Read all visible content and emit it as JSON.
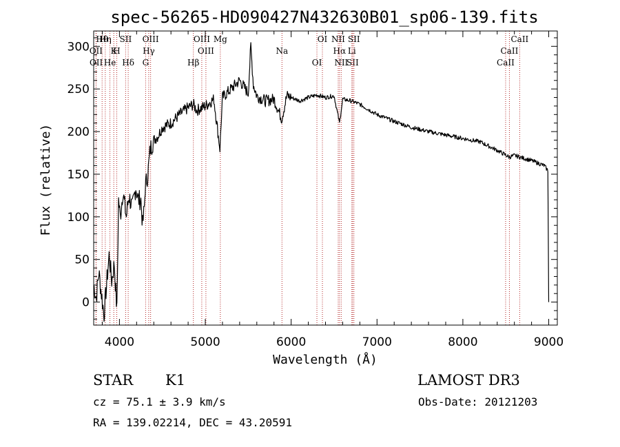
{
  "chart_data": {
    "type": "line",
    "title": "spec-56265-HD090427N432630B01_sp06-139.fits",
    "xlabel": "Wavelength (Å)",
    "ylabel": "Flux (relative)",
    "xlim": [
      3700,
      9100
    ],
    "ylim": [
      -27,
      318
    ],
    "xticks": [
      4000,
      5000,
      6000,
      7000,
      8000,
      9000
    ],
    "yticks": [
      0,
      50,
      100,
      150,
      200,
      250,
      300
    ],
    "series": [
      {
        "x": [
          3700,
          3730,
          3760,
          3790,
          3820,
          3850,
          3880,
          3910,
          3940,
          3970,
          3990,
          4010,
          4040,
          4080,
          4110,
          4150,
          4190,
          4220,
          4250,
          4270,
          4290,
          4300,
          4330,
          4360,
          4400,
          4450,
          4500,
          4600,
          4700,
          4800,
          4860,
          4900,
          5000,
          5100,
          5170,
          5200,
          5300,
          5400,
          5500,
          5530,
          5560,
          5600,
          5700,
          5800,
          5890,
          5950,
          6000,
          6100,
          6200,
          6300,
          6400,
          6500,
          6563,
          6600,
          6700,
          6800,
          7000,
          7200,
          7400,
          7600,
          7800,
          8000,
          8200,
          8400,
          8542,
          8600,
          8700,
          8800,
          8950,
          8990,
          8995,
          9000
        ],
        "y": [
          20,
          5,
          35,
          10,
          -15,
          20,
          55,
          25,
          45,
          -10,
          120,
          100,
          130,
          100,
          125,
          110,
          135,
          120,
          120,
          90,
          110,
          135,
          150,
          180,
          190,
          195,
          205,
          210,
          220,
          228,
          232,
          225,
          230,
          238,
          180,
          240,
          250,
          260,
          245,
          300,
          255,
          242,
          236,
          238,
          215,
          242,
          240,
          236,
          240,
          243,
          240,
          242,
          210,
          238,
          236,
          232,
          220,
          212,
          205,
          200,
          196,
          192,
          188,
          178,
          170,
          172,
          169,
          166,
          160,
          154,
          80,
          0
        ]
      }
    ],
    "spectral_lines": [
      {
        "label": "Hθ",
        "x": 3798
      },
      {
        "label": "OII",
        "x": 3727
      },
      {
        "label": "OII",
        "x": 3729
      },
      {
        "label": "Hη",
        "x": 3835
      },
      {
        "label": "K",
        "x": 3934
      },
      {
        "label": "He",
        "x": 3889
      },
      {
        "label": "SII",
        "x": 4072
      },
      {
        "label": "H",
        "x": 3969
      },
      {
        "label": "Hδ",
        "x": 4102
      },
      {
        "label": "OIII",
        "x": 4363
      },
      {
        "label": "Hγ",
        "x": 4341
      },
      {
        "label": "G",
        "x": 4305
      },
      {
        "label": "OIII",
        "x": 4959
      },
      {
        "label": "OIII",
        "x": 5007
      },
      {
        "label": "Hβ",
        "x": 4861
      },
      {
        "label": "Mg",
        "x": 5175
      },
      {
        "label": "Na",
        "x": 5893
      },
      {
        "label": "OI",
        "x": 6300
      },
      {
        "label": "OI",
        "x": 6364
      },
      {
        "label": "Hα",
        "x": 6563
      },
      {
        "label": "SII",
        "x": 6716
      },
      {
        "label": "NII",
        "x": 6548
      },
      {
        "label": "Li",
        "x": 6707
      },
      {
        "label": "NII",
        "x": 6583
      },
      {
        "label": "SII",
        "x": 6731
      },
      {
        "label": "CaII",
        "x": 8542
      },
      {
        "label": "CaII",
        "x": 8498
      },
      {
        "label": "CaII",
        "x": 8662
      }
    ],
    "line_color": "#000000",
    "marker_color": "#b22222",
    "grid": false
  },
  "info": {
    "class": "STAR",
    "subclass": "K1",
    "survey": "LAMOST DR3",
    "cz": "cz = 75.1 ± 3.9 km/s",
    "obs_date": "Obs-Date: 20121203",
    "coords": "RA = 139.02214, DEC =  43.20591"
  }
}
